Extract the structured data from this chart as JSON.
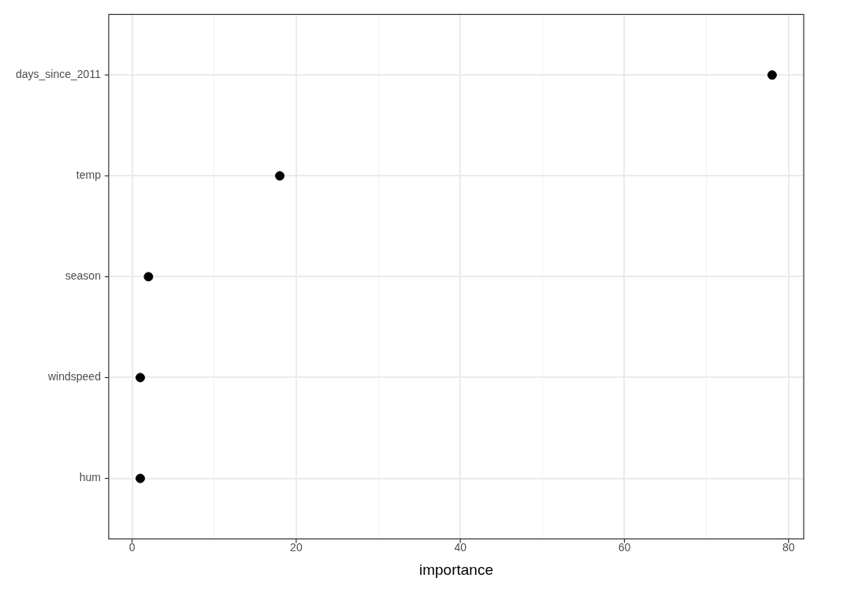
{
  "chart_data": {
    "type": "scatter",
    "orientation": "horizontal",
    "xlabel": "importance",
    "categories": [
      "days_since_2011",
      "temp",
      "season",
      "windspeed",
      "hum"
    ],
    "values": [
      78,
      18,
      2,
      1,
      1
    ],
    "color": "#000000",
    "marker": "circle",
    "xlim": [
      -2.85,
      81.85
    ],
    "xticks": [
      0,
      {
        "value": 10,
        "label": null
      },
      20,
      {
        "value": 30,
        "label": null
      },
      40,
      {
        "value": 50,
        "label": null
      },
      60,
      {
        "value": 70,
        "label": null
      },
      80
    ],
    "grid": true,
    "legend": false
  }
}
